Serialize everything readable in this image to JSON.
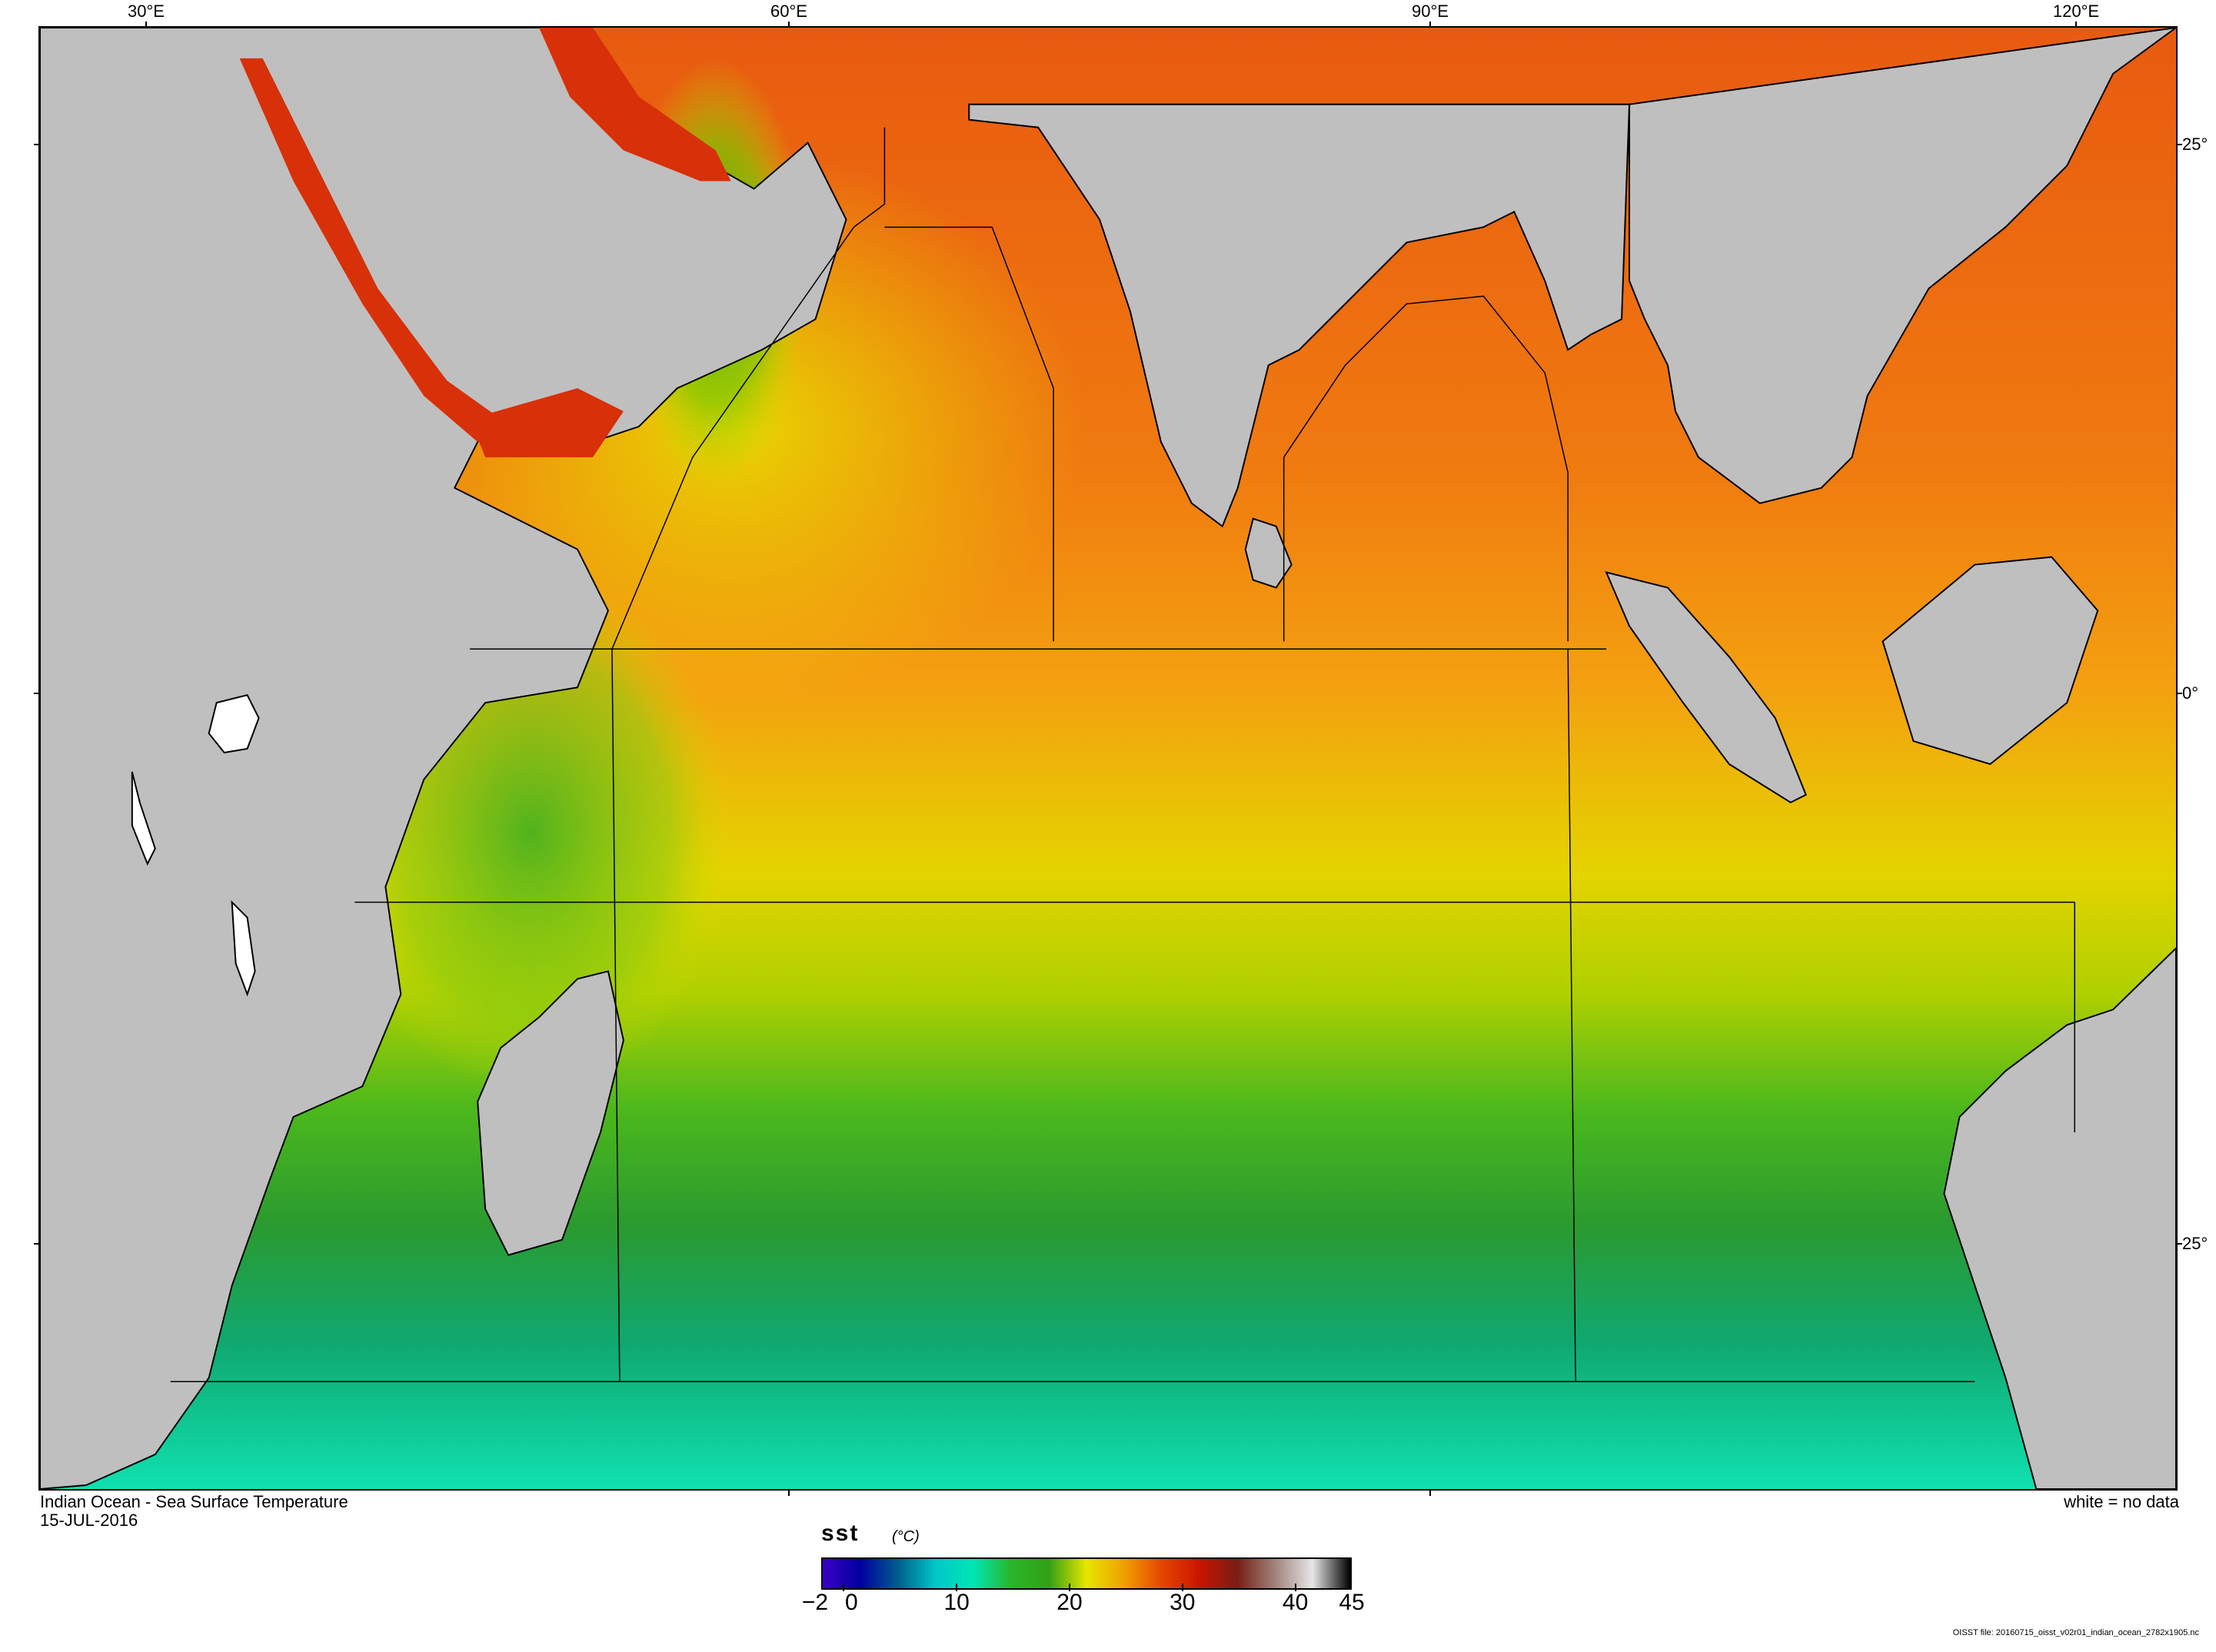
{
  "map": {
    "lon_labels": [
      "30°E",
      "60°E",
      "90°E",
      "120°E"
    ],
    "lat_labels": [
      "25°",
      "0°",
      "25°"
    ],
    "land_color": "#bfbfbf",
    "no_data_color": "#ffffff"
  },
  "caption": {
    "title": "Indian Ocean - Sea Surface Temperature",
    "date": "15-JUL-2016",
    "note": "white = no data"
  },
  "colorbar": {
    "variable": "sst",
    "units": "(°C)",
    "ticks": [
      "−2",
      "0",
      "10",
      "20",
      "30",
      "40",
      "45"
    ],
    "range": [
      -2,
      45
    ],
    "stops": [
      "#3a00c8",
      "#0000a0",
      "#005e8c",
      "#00c8c8",
      "#00e6b4",
      "#2bb52b",
      "#32a014",
      "#e6e600",
      "#f0a000",
      "#e64600",
      "#c81400",
      "#781e14",
      "#a0827a",
      "#e6e6e6",
      "#000000"
    ]
  },
  "footer": {
    "file": "OISST file: 20160715_oisst_v02r01_indian_ocean_2782x1905.nc"
  }
}
